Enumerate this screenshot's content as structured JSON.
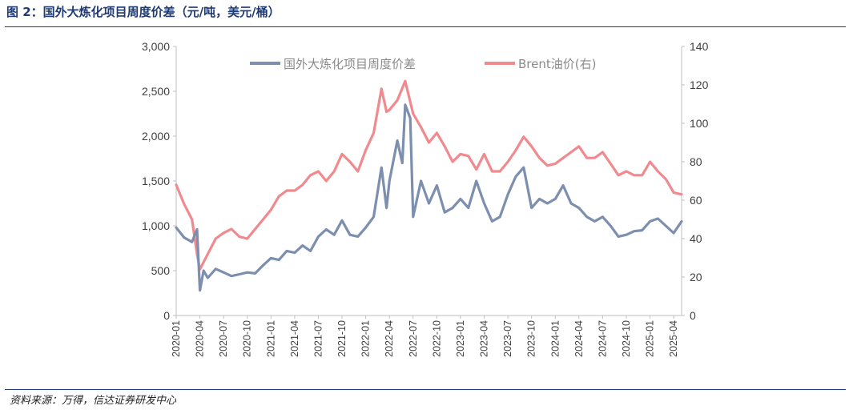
{
  "figure_title": "图 2：国外大炼化项目周度价差（元/吨，美元/桶）",
  "source": "资料来源：万得，信达证券研发中心",
  "colors": {
    "spread": "#7d8fae",
    "brent": "#f08a8e",
    "axis": "#bfbfbf",
    "rule": "#1f3b73"
  },
  "chart_data": {
    "type": "line",
    "title": "",
    "xlabel": "",
    "ylabel": "",
    "grid": false,
    "legend_position": "top",
    "ylim_left": [
      0,
      3000
    ],
    "ylim_right": [
      0,
      140
    ],
    "yticks_left": [
      "0",
      "500",
      "1,000",
      "1,500",
      "2,000",
      "2,500",
      "3,000"
    ],
    "yticks_right": [
      "0",
      "20",
      "40",
      "60",
      "80",
      "100",
      "120",
      "140"
    ],
    "x_tick_labels": [
      "2020-01",
      "2020-04",
      "2020-07",
      "2020-10",
      "2021-01",
      "2021-04",
      "2021-07",
      "2021-10",
      "2022-01",
      "2022-04",
      "2022-07",
      "2022-10",
      "2023-01",
      "2023-04",
      "2023-07",
      "2023-10",
      "2024-01",
      "2024-04",
      "2024-07",
      "2024-10",
      "2025-01",
      "2025-04"
    ],
    "x_start": "2020-01",
    "x_end": "2025-05",
    "series": [
      {
        "name": "国外大炼化项目周度价差",
        "axis": "left",
        "points": [
          [
            "2020-01",
            980
          ],
          [
            "2020-02",
            870
          ],
          [
            "2020-03",
            820
          ],
          [
            "2020-03-20",
            960
          ],
          [
            "2020-04",
            280
          ],
          [
            "2020-04-15",
            500
          ],
          [
            "2020-05",
            420
          ],
          [
            "2020-06",
            520
          ],
          [
            "2020-07",
            480
          ],
          [
            "2020-08",
            440
          ],
          [
            "2020-09",
            460
          ],
          [
            "2020-10",
            480
          ],
          [
            "2020-11",
            470
          ],
          [
            "2020-12",
            560
          ],
          [
            "2021-01",
            640
          ],
          [
            "2021-02",
            620
          ],
          [
            "2021-03",
            720
          ],
          [
            "2021-04",
            700
          ],
          [
            "2021-05",
            780
          ],
          [
            "2021-06",
            720
          ],
          [
            "2021-07",
            880
          ],
          [
            "2021-08",
            960
          ],
          [
            "2021-09",
            900
          ],
          [
            "2021-10",
            1060
          ],
          [
            "2021-11",
            900
          ],
          [
            "2021-12",
            880
          ],
          [
            "2022-01",
            980
          ],
          [
            "2022-02",
            1100
          ],
          [
            "2022-03",
            1650
          ],
          [
            "2022-03-20",
            1200
          ],
          [
            "2022-04",
            1500
          ],
          [
            "2022-05",
            1950
          ],
          [
            "2022-05-20",
            1700
          ],
          [
            "2022-06",
            2350
          ],
          [
            "2022-06-20",
            2200
          ],
          [
            "2022-07",
            1100
          ],
          [
            "2022-08",
            1500
          ],
          [
            "2022-09",
            1250
          ],
          [
            "2022-10",
            1450
          ],
          [
            "2022-11",
            1150
          ],
          [
            "2022-12",
            1200
          ],
          [
            "2023-01",
            1300
          ],
          [
            "2023-02",
            1200
          ],
          [
            "2023-03",
            1500
          ],
          [
            "2023-04",
            1250
          ],
          [
            "2023-05",
            1050
          ],
          [
            "2023-06",
            1100
          ],
          [
            "2023-07",
            1350
          ],
          [
            "2023-08",
            1550
          ],
          [
            "2023-09",
            1650
          ],
          [
            "2023-10",
            1200
          ],
          [
            "2023-11",
            1300
          ],
          [
            "2023-12",
            1250
          ],
          [
            "2024-01",
            1300
          ],
          [
            "2024-02",
            1450
          ],
          [
            "2024-03",
            1250
          ],
          [
            "2024-04",
            1200
          ],
          [
            "2024-05",
            1100
          ],
          [
            "2024-06",
            1050
          ],
          [
            "2024-07",
            1100
          ],
          [
            "2024-08",
            1000
          ],
          [
            "2024-09",
            880
          ],
          [
            "2024-10",
            900
          ],
          [
            "2024-11",
            940
          ],
          [
            "2024-12",
            950
          ],
          [
            "2025-01",
            1050
          ],
          [
            "2025-02",
            1080
          ],
          [
            "2025-03",
            1000
          ],
          [
            "2025-04",
            920
          ],
          [
            "2025-05",
            1050
          ]
        ]
      },
      {
        "name": "Brent油价(右)",
        "axis": "right",
        "points": [
          [
            "2020-01",
            68
          ],
          [
            "2020-02",
            58
          ],
          [
            "2020-03",
            50
          ],
          [
            "2020-03-20",
            32
          ],
          [
            "2020-04",
            24
          ],
          [
            "2020-05",
            32
          ],
          [
            "2020-06",
            40
          ],
          [
            "2020-07",
            43
          ],
          [
            "2020-08",
            45
          ],
          [
            "2020-09",
            41
          ],
          [
            "2020-10",
            40
          ],
          [
            "2020-11",
            45
          ],
          [
            "2020-12",
            50
          ],
          [
            "2021-01",
            55
          ],
          [
            "2021-02",
            62
          ],
          [
            "2021-03",
            65
          ],
          [
            "2021-04",
            65
          ],
          [
            "2021-05",
            68
          ],
          [
            "2021-06",
            73
          ],
          [
            "2021-07",
            75
          ],
          [
            "2021-08",
            70
          ],
          [
            "2021-09",
            75
          ],
          [
            "2021-10",
            84
          ],
          [
            "2021-11",
            80
          ],
          [
            "2021-12",
            75
          ],
          [
            "2022-01",
            86
          ],
          [
            "2022-02",
            95
          ],
          [
            "2022-03",
            118
          ],
          [
            "2022-03-20",
            106
          ],
          [
            "2022-04",
            107
          ],
          [
            "2022-05",
            112
          ],
          [
            "2022-06",
            122
          ],
          [
            "2022-07",
            105
          ],
          [
            "2022-08",
            98
          ],
          [
            "2022-09",
            90
          ],
          [
            "2022-10",
            95
          ],
          [
            "2022-11",
            88
          ],
          [
            "2022-12",
            80
          ],
          [
            "2023-01",
            84
          ],
          [
            "2023-02",
            83
          ],
          [
            "2023-03",
            76
          ],
          [
            "2023-04",
            84
          ],
          [
            "2023-05",
            75
          ],
          [
            "2023-06",
            75
          ],
          [
            "2023-07",
            80
          ],
          [
            "2023-08",
            86
          ],
          [
            "2023-09",
            93
          ],
          [
            "2023-10",
            88
          ],
          [
            "2023-11",
            82
          ],
          [
            "2023-12",
            78
          ],
          [
            "2024-01",
            79
          ],
          [
            "2024-02",
            82
          ],
          [
            "2024-03",
            85
          ],
          [
            "2024-04",
            88
          ],
          [
            "2024-05",
            82
          ],
          [
            "2024-06",
            82
          ],
          [
            "2024-07",
            85
          ],
          [
            "2024-08",
            79
          ],
          [
            "2024-09",
            73
          ],
          [
            "2024-10",
            75
          ],
          [
            "2024-11",
            73
          ],
          [
            "2024-12",
            73
          ],
          [
            "2025-01",
            80
          ],
          [
            "2025-02",
            75
          ],
          [
            "2025-03",
            71
          ],
          [
            "2025-04",
            64
          ],
          [
            "2025-05",
            63
          ]
        ]
      }
    ]
  }
}
